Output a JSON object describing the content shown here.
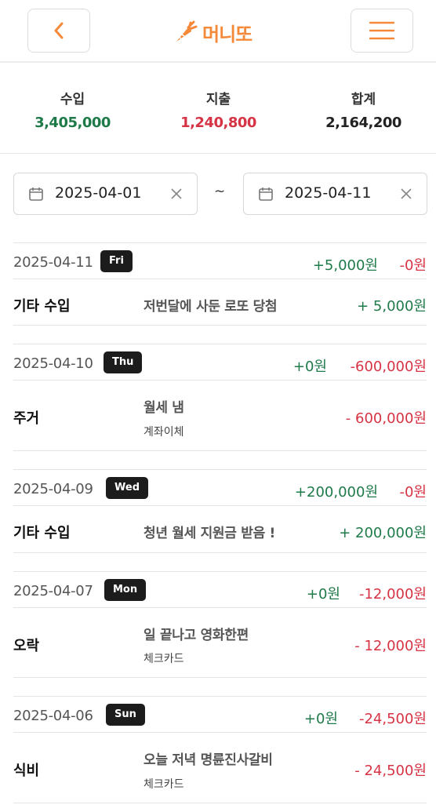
{
  "header": {
    "brand": "머니또",
    "back_icon": "chevron-left-icon",
    "menu_icon": "hamburger-menu-icon",
    "logo_icon": "carrot-icon"
  },
  "colors": {
    "accent": "#f5893a",
    "income": "#1f7a4a",
    "expense": "#d63344"
  },
  "summary": {
    "income_label": "수입",
    "income_value": "3,405,000",
    "expense_label": "지출",
    "expense_value": "1,240,800",
    "total_label": "합계",
    "total_value": "2,164,200"
  },
  "range": {
    "start": "2025-04-01",
    "separator": "~",
    "end": "2025-04-11"
  },
  "days": [
    {
      "date": "2025-04-11",
      "weekday": "Fri",
      "income": "+5,000원",
      "expense": "-0원",
      "entries": [
        {
          "category": "기타 수입",
          "desc": "저번달에 사둔 로또 당첨",
          "sub": "",
          "amount": "+ 5,000원",
          "kind": "income"
        }
      ]
    },
    {
      "date": "2025-04-10",
      "weekday": "Thu",
      "income": "+0원",
      "expense": "-600,000원",
      "entries": [
        {
          "category": "주거",
          "desc": "월세 냄",
          "sub": "계좌이체",
          "amount": "- 600,000원",
          "kind": "expense"
        }
      ]
    },
    {
      "date": "2025-04-09",
      "weekday": "Wed",
      "income": "+200,000원",
      "expense": "-0원",
      "entries": [
        {
          "category": "기타 수입",
          "desc": "청년 월세 지원금 받음 !",
          "sub": "",
          "amount": "+ 200,000원",
          "kind": "income"
        }
      ]
    },
    {
      "date": "2025-04-07",
      "weekday": "Mon",
      "income": "+0원",
      "expense": "-12,000원",
      "entries": [
        {
          "category": "오락",
          "desc": "일 끝나고 영화한편",
          "sub": "체크카드",
          "amount": "- 12,000원",
          "kind": "expense"
        }
      ]
    },
    {
      "date": "2025-04-06",
      "weekday": "Sun",
      "income": "+0원",
      "expense": "-24,500원",
      "entries": [
        {
          "category": "식비",
          "desc": "오늘 저녁 명륜진사갈비",
          "sub": "체크카드",
          "amount": "- 24,500원",
          "kind": "expense"
        }
      ]
    }
  ]
}
